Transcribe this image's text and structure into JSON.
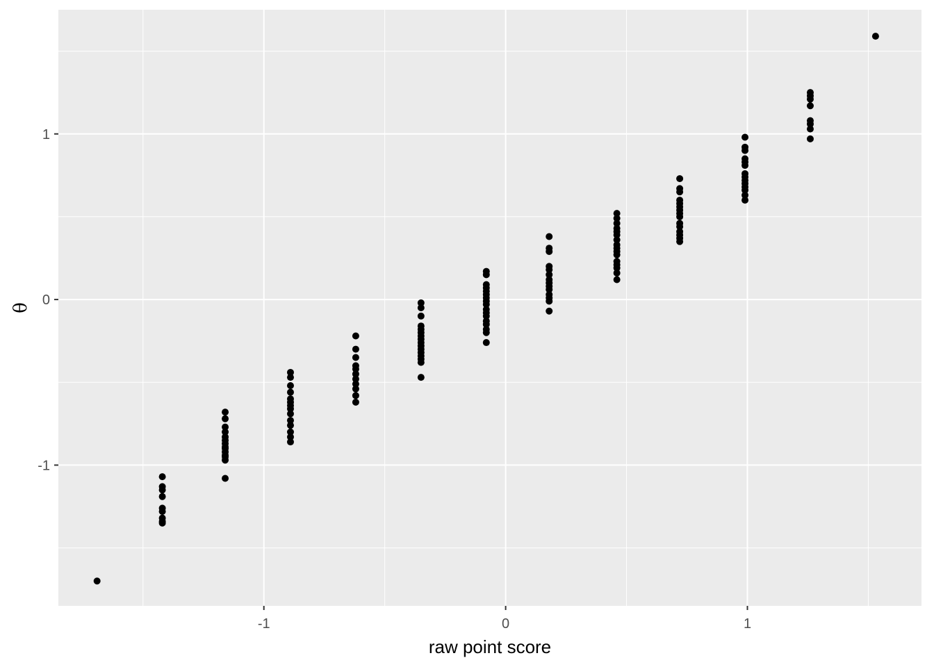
{
  "chart_data": {
    "type": "scatter",
    "title": "",
    "xlabel": "raw point score",
    "ylabel": "θ",
    "xlim": [
      -1.85,
      1.72
    ],
    "ylim": [
      -1.85,
      1.75
    ],
    "x_ticks": [
      {
        "value": -1,
        "label": "-1"
      },
      {
        "value": 0,
        "label": "0"
      },
      {
        "value": 1,
        "label": "1"
      }
    ],
    "y_ticks": [
      {
        "value": -1,
        "label": "-1"
      },
      {
        "value": 0,
        "label": "0"
      },
      {
        "value": 1,
        "label": "1"
      }
    ],
    "x_minor": [
      -1.5,
      -0.5,
      0.5,
      1.5
    ],
    "y_minor": [
      -1.5,
      -0.5,
      0.5,
      1.5
    ],
    "grid": true,
    "panel_color": "#ebebeb",
    "grid_color": "#ffffff",
    "point_color": "#000000",
    "series": [
      {
        "points": [
          [
            -1.69,
            -1.7
          ],
          [
            -1.42,
            -1.07
          ],
          [
            -1.42,
            -1.13
          ],
          [
            -1.42,
            -1.15
          ],
          [
            -1.42,
            -1.19
          ],
          [
            -1.42,
            -1.26
          ],
          [
            -1.42,
            -1.28
          ],
          [
            -1.42,
            -1.32
          ],
          [
            -1.42,
            -1.34
          ],
          [
            -1.42,
            -1.35
          ],
          [
            -1.16,
            -1.08
          ],
          [
            -1.16,
            -0.68
          ],
          [
            -1.16,
            -0.72
          ],
          [
            -1.16,
            -0.77
          ],
          [
            -1.16,
            -0.8
          ],
          [
            -1.16,
            -0.83
          ],
          [
            -1.16,
            -0.85
          ],
          [
            -1.16,
            -0.87
          ],
          [
            -1.16,
            -0.89
          ],
          [
            -1.16,
            -0.9
          ],
          [
            -1.16,
            -0.92
          ],
          [
            -1.16,
            -0.94
          ],
          [
            -1.16,
            -0.95
          ],
          [
            -1.16,
            -0.97
          ],
          [
            -0.89,
            -0.44
          ],
          [
            -0.89,
            -0.47
          ],
          [
            -0.89,
            -0.52
          ],
          [
            -0.89,
            -0.56
          ],
          [
            -0.89,
            -0.6
          ],
          [
            -0.89,
            -0.62
          ],
          [
            -0.89,
            -0.64
          ],
          [
            -0.89,
            -0.66
          ],
          [
            -0.89,
            -0.69
          ],
          [
            -0.89,
            -0.73
          ],
          [
            -0.89,
            -0.76
          ],
          [
            -0.89,
            -0.8
          ],
          [
            -0.89,
            -0.83
          ],
          [
            -0.89,
            -0.86
          ],
          [
            -0.62,
            -0.22
          ],
          [
            -0.62,
            -0.3
          ],
          [
            -0.62,
            -0.35
          ],
          [
            -0.62,
            -0.4
          ],
          [
            -0.62,
            -0.42
          ],
          [
            -0.62,
            -0.45
          ],
          [
            -0.62,
            -0.48
          ],
          [
            -0.62,
            -0.51
          ],
          [
            -0.62,
            -0.54
          ],
          [
            -0.62,
            -0.58
          ],
          [
            -0.62,
            -0.62
          ],
          [
            -0.35,
            -0.02
          ],
          [
            -0.35,
            -0.05
          ],
          [
            -0.35,
            -0.1
          ],
          [
            -0.35,
            -0.16
          ],
          [
            -0.35,
            -0.18
          ],
          [
            -0.35,
            -0.2
          ],
          [
            -0.35,
            -0.22
          ],
          [
            -0.35,
            -0.24
          ],
          [
            -0.35,
            -0.26
          ],
          [
            -0.35,
            -0.28
          ],
          [
            -0.35,
            -0.3
          ],
          [
            -0.35,
            -0.32
          ],
          [
            -0.35,
            -0.34
          ],
          [
            -0.35,
            -0.36
          ],
          [
            -0.35,
            -0.38
          ],
          [
            -0.35,
            -0.47
          ],
          [
            -0.08,
            0.17
          ],
          [
            -0.08,
            0.15
          ],
          [
            -0.08,
            0.09
          ],
          [
            -0.08,
            0.07
          ],
          [
            -0.08,
            0.05
          ],
          [
            -0.08,
            0.03
          ],
          [
            -0.08,
            0.01
          ],
          [
            -0.08,
            -0.01
          ],
          [
            -0.08,
            -0.03
          ],
          [
            -0.08,
            -0.06
          ],
          [
            -0.08,
            -0.08
          ],
          [
            -0.08,
            -0.1
          ],
          [
            -0.08,
            -0.13
          ],
          [
            -0.08,
            -0.15
          ],
          [
            -0.08,
            -0.18
          ],
          [
            -0.08,
            -0.2
          ],
          [
            -0.08,
            -0.26
          ],
          [
            0.18,
            0.38
          ],
          [
            0.18,
            0.31
          ],
          [
            0.18,
            0.29
          ],
          [
            0.18,
            0.2
          ],
          [
            0.18,
            0.18
          ],
          [
            0.18,
            0.15
          ],
          [
            0.18,
            0.12
          ],
          [
            0.18,
            0.1
          ],
          [
            0.18,
            0.08
          ],
          [
            0.18,
            0.06
          ],
          [
            0.18,
            0.03
          ],
          [
            0.18,
            0.01
          ],
          [
            0.18,
            -0.01
          ],
          [
            0.18,
            -0.07
          ],
          [
            0.46,
            0.52
          ],
          [
            0.46,
            0.49
          ],
          [
            0.46,
            0.46
          ],
          [
            0.46,
            0.43
          ],
          [
            0.46,
            0.41
          ],
          [
            0.46,
            0.39
          ],
          [
            0.46,
            0.36
          ],
          [
            0.46,
            0.33
          ],
          [
            0.46,
            0.31
          ],
          [
            0.46,
            0.29
          ],
          [
            0.46,
            0.27
          ],
          [
            0.46,
            0.23
          ],
          [
            0.46,
            0.21
          ],
          [
            0.46,
            0.19
          ],
          [
            0.46,
            0.16
          ],
          [
            0.46,
            0.12
          ],
          [
            0.72,
            0.73
          ],
          [
            0.72,
            0.67
          ],
          [
            0.72,
            0.65
          ],
          [
            0.72,
            0.6
          ],
          [
            0.72,
            0.58
          ],
          [
            0.72,
            0.56
          ],
          [
            0.72,
            0.54
          ],
          [
            0.72,
            0.52
          ],
          [
            0.72,
            0.5
          ],
          [
            0.72,
            0.46
          ],
          [
            0.72,
            0.44
          ],
          [
            0.72,
            0.41
          ],
          [
            0.72,
            0.39
          ],
          [
            0.72,
            0.37
          ],
          [
            0.72,
            0.35
          ],
          [
            0.99,
            0.98
          ],
          [
            0.99,
            0.92
          ],
          [
            0.99,
            0.9
          ],
          [
            0.99,
            0.85
          ],
          [
            0.99,
            0.83
          ],
          [
            0.99,
            0.81
          ],
          [
            0.99,
            0.76
          ],
          [
            0.99,
            0.74
          ],
          [
            0.99,
            0.72
          ],
          [
            0.99,
            0.7
          ],
          [
            0.99,
            0.68
          ],
          [
            0.99,
            0.66
          ],
          [
            0.99,
            0.63
          ],
          [
            0.99,
            0.6
          ],
          [
            1.26,
            1.25
          ],
          [
            1.26,
            1.23
          ],
          [
            1.26,
            1.21
          ],
          [
            1.26,
            1.17
          ],
          [
            1.26,
            1.08
          ],
          [
            1.26,
            1.06
          ],
          [
            1.26,
            1.03
          ],
          [
            1.26,
            0.97
          ],
          [
            1.53,
            1.59
          ]
        ]
      }
    ]
  }
}
